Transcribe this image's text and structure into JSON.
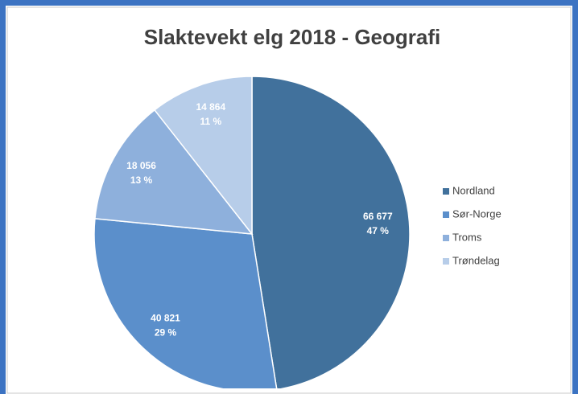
{
  "chart_data": {
    "type": "pie",
    "title": "Slaktevekt elg 2018 - Geografi",
    "categories": [
      "Nordland",
      "Sør-Norge",
      "Troms",
      "Trøndelag"
    ],
    "values": [
      66677,
      40821,
      18056,
      14864
    ],
    "value_labels": [
      "66 677",
      "40 821",
      "18 056",
      "14 864"
    ],
    "percents": [
      47,
      29,
      13,
      11
    ],
    "percent_labels": [
      "47 %",
      "29 %",
      "13 %",
      "11 %"
    ],
    "colors": [
      "#41719c",
      "#5b8fcb",
      "#8eb0dc",
      "#b7cde9"
    ],
    "legend": "right"
  }
}
